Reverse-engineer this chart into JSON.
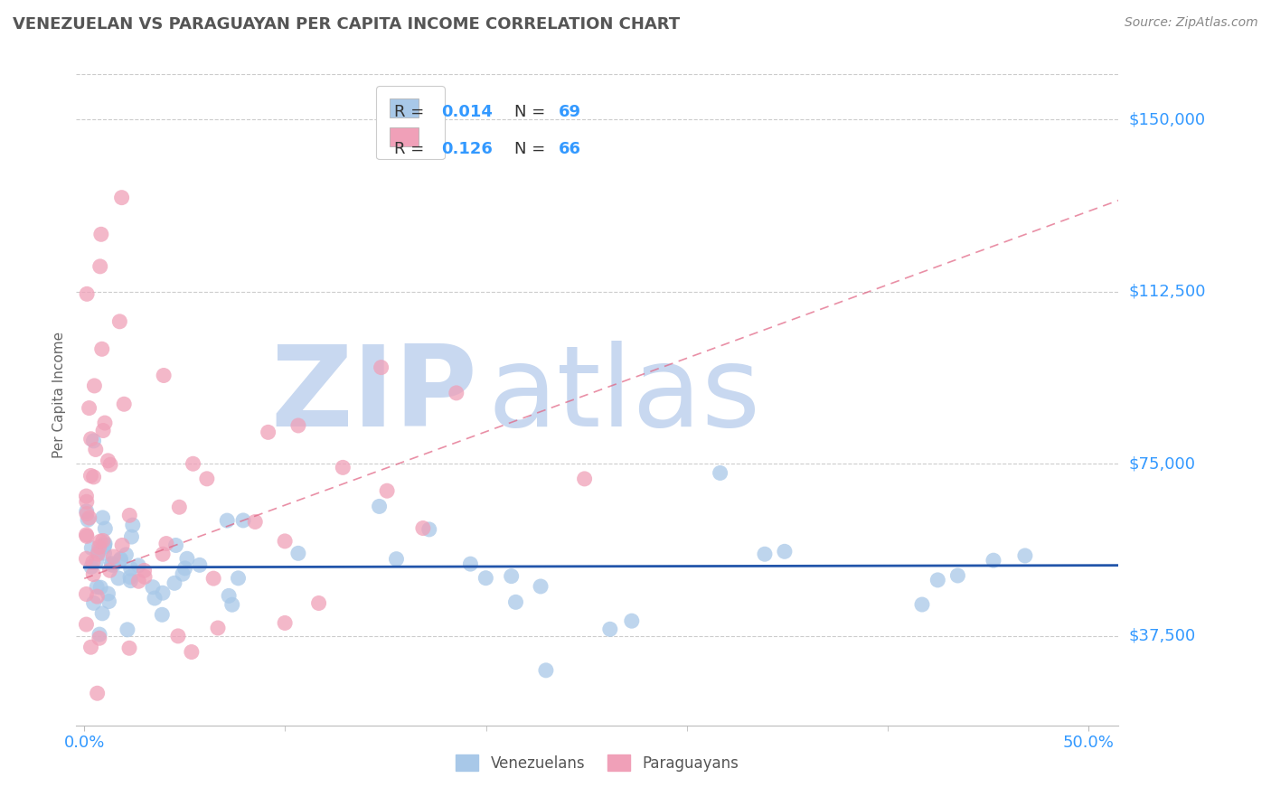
{
  "title": "VENEZUELAN VS PARAGUAYAN PER CAPITA INCOME CORRELATION CHART",
  "source": "Source: ZipAtlas.com",
  "ylabel": "Per Capita Income",
  "yticks": [
    37500,
    75000,
    112500,
    150000
  ],
  "ytick_labels": [
    "$37,500",
    "$75,000",
    "$112,500",
    "$150,000"
  ],
  "ymin": 18000,
  "ymax": 162000,
  "xmin": -0.004,
  "xmax": 0.515,
  "blue_color": "#A8C8E8",
  "blue_line_color": "#2255AA",
  "pink_color": "#F0A0B8",
  "pink_line_color": "#E06080",
  "watermark_zip_color": "#C8D8F0",
  "watermark_atlas_color": "#C8D8F0",
  "title_color": "#555555",
  "axis_label_color": "#3399FF",
  "grid_color": "#CCCCCC",
  "legend_text_color": "#333333",
  "legend_r_color": "#3399FF",
  "legend_n_color": "#3399FF"
}
